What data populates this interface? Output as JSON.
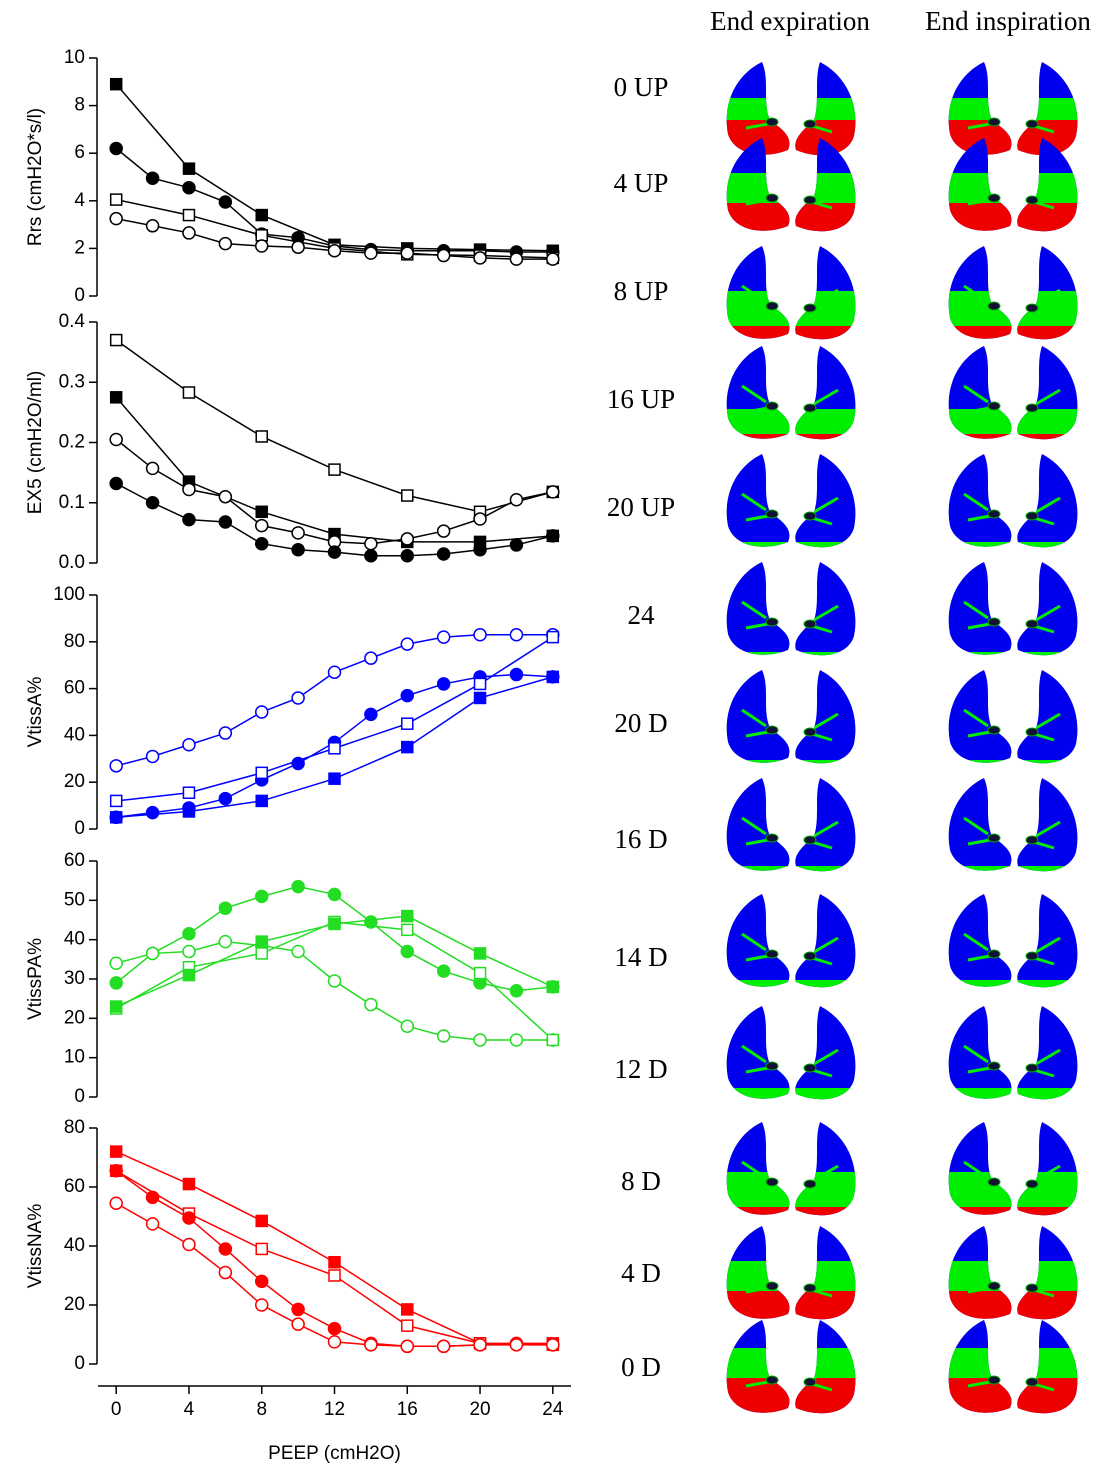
{
  "chart_data": [
    {
      "type": "line",
      "ylabel": "Rrs (cmH2O*s/l)",
      "xlim": [
        -1,
        25
      ],
      "ylim": [
        0,
        10
      ],
      "yticks": [
        0,
        2,
        4,
        6,
        8,
        10
      ],
      "series": [
        {
          "color": "#000000",
          "marker": "square",
          "filled": true,
          "x": [
            0,
            4,
            8,
            12,
            16,
            20,
            24
          ],
          "values": [
            8.9,
            5.35,
            3.4,
            2.15,
            2.0,
            1.95,
            1.9
          ]
        },
        {
          "color": "#000000",
          "marker": "circle",
          "filled": true,
          "x": [
            0,
            2,
            4,
            6,
            8,
            10,
            12,
            14,
            16,
            18,
            20,
            22,
            24
          ],
          "values": [
            6.2,
            4.95,
            4.55,
            3.95,
            2.6,
            2.45,
            2.1,
            1.95,
            1.9,
            1.9,
            1.9,
            1.85,
            1.85
          ]
        },
        {
          "color": "#000000",
          "marker": "square",
          "filled": false,
          "x": [
            0,
            4,
            8,
            12,
            16,
            20,
            24
          ],
          "values": [
            4.05,
            3.4,
            2.55,
            2.0,
            1.75,
            1.7,
            1.6
          ]
        },
        {
          "color": "#000000",
          "marker": "circle",
          "filled": false,
          "x": [
            0,
            2,
            4,
            6,
            8,
            10,
            12,
            14,
            16,
            18,
            20,
            22,
            24
          ],
          "values": [
            3.25,
            2.95,
            2.65,
            2.2,
            2.1,
            2.05,
            1.9,
            1.8,
            1.8,
            1.7,
            1.6,
            1.55,
            1.55
          ]
        }
      ]
    },
    {
      "type": "line",
      "ylabel": "EX5 (cmH2O/ml)",
      "xlim": [
        -1,
        25
      ],
      "ylim": [
        0,
        0.4
      ],
      "yticks": [
        {
          "value": 0,
          "label": "0.0"
        },
        0.1,
        0.2,
        0.3,
        0.4
      ],
      "series": [
        {
          "color": "#000000",
          "marker": "square",
          "filled": false,
          "x": [
            0,
            4,
            8,
            12,
            16,
            20,
            24
          ],
          "values": [
            0.37,
            0.283,
            0.21,
            0.155,
            0.112,
            0.085,
            0.118
          ]
        },
        {
          "color": "#000000",
          "marker": "square",
          "filled": true,
          "x": [
            0,
            4,
            8,
            12,
            16,
            20,
            24
          ],
          "values": [
            0.275,
            0.135,
            0.085,
            0.048,
            0.035,
            0.035,
            0.045
          ]
        },
        {
          "color": "#000000",
          "marker": "circle",
          "filled": false,
          "x": [
            0,
            2,
            4,
            6,
            8,
            10,
            12,
            14,
            16,
            18,
            20,
            22,
            24
          ],
          "values": [
            0.205,
            0.157,
            0.122,
            0.11,
            0.062,
            0.05,
            0.035,
            0.032,
            0.04,
            0.053,
            0.073,
            0.105,
            0.118
          ]
        },
        {
          "color": "#000000",
          "marker": "circle",
          "filled": true,
          "x": [
            0,
            2,
            4,
            6,
            8,
            10,
            12,
            14,
            16,
            18,
            20,
            22,
            24
          ],
          "values": [
            0.132,
            0.1,
            0.072,
            0.068,
            0.032,
            0.022,
            0.018,
            0.012,
            0.012,
            0.015,
            0.022,
            0.03,
            0.045
          ]
        }
      ]
    },
    {
      "type": "line",
      "ylabel": "VtissA%",
      "xlim": [
        -1,
        25
      ],
      "ylim": [
        0,
        100
      ],
      "yticks": [
        0,
        20,
        40,
        60,
        80,
        100
      ],
      "series": [
        {
          "color": "#0000ff",
          "marker": "circle",
          "filled": false,
          "x": [
            0,
            2,
            4,
            6,
            8,
            10,
            12,
            14,
            16,
            18,
            20,
            22,
            24
          ],
          "values": [
            27,
            31,
            36,
            41,
            50,
            56,
            67,
            73,
            79,
            82,
            83,
            83,
            83
          ]
        },
        {
          "color": "#0000ff",
          "marker": "circle",
          "filled": true,
          "x": [
            0,
            2,
            4,
            6,
            8,
            10,
            12,
            14,
            16,
            18,
            20,
            22,
            24
          ],
          "values": [
            5,
            7,
            9,
            13,
            21,
            28,
            37,
            49,
            57,
            62,
            65,
            66,
            65
          ]
        },
        {
          "color": "#0000ff",
          "marker": "square",
          "filled": false,
          "x": [
            0,
            4,
            8,
            12,
            16,
            20,
            24
          ],
          "values": [
            12,
            15.5,
            24,
            34.5,
            45,
            62,
            82
          ]
        },
        {
          "color": "#0000ff",
          "marker": "square",
          "filled": true,
          "x": [
            0,
            4,
            8,
            12,
            16,
            20,
            24
          ],
          "values": [
            5,
            7.5,
            12,
            21.5,
            35,
            56,
            65
          ]
        }
      ]
    },
    {
      "type": "line",
      "ylabel": "VtissPA%",
      "xlim": [
        -1,
        25
      ],
      "ylim": [
        0,
        60
      ],
      "yticks": [
        0,
        10,
        20,
        30,
        40,
        50,
        60
      ],
      "series": [
        {
          "color": "#22dd22",
          "marker": "circle",
          "filled": true,
          "x": [
            0,
            2,
            4,
            6,
            8,
            10,
            12,
            14,
            16,
            18,
            20,
            22,
            24
          ],
          "values": [
            29,
            36.5,
            41.5,
            48,
            51,
            53.5,
            51.5,
            44.5,
            37,
            32,
            29,
            27,
            28
          ]
        },
        {
          "color": "#22dd22",
          "marker": "circle",
          "filled": false,
          "x": [
            0,
            2,
            4,
            6,
            8,
            10,
            12,
            14,
            16,
            18,
            20,
            22,
            24
          ],
          "values": [
            34,
            36.5,
            37,
            39.5,
            38.5,
            37,
            29.5,
            23.5,
            18,
            15.5,
            14.5,
            14.5,
            14.5
          ]
        },
        {
          "color": "#22dd22",
          "marker": "square",
          "filled": false,
          "x": [
            0,
            4,
            8,
            12,
            16,
            20,
            24
          ],
          "values": [
            22.5,
            33,
            36.5,
            44.5,
            42.5,
            31.5,
            14.5
          ]
        },
        {
          "color": "#22dd22",
          "marker": "square",
          "filled": true,
          "x": [
            0,
            4,
            8,
            12,
            16,
            20,
            24
          ],
          "values": [
            23,
            31,
            39.5,
            44,
            46,
            36.5,
            28
          ]
        }
      ]
    },
    {
      "type": "line",
      "ylabel": "VtissNA%",
      "xlabel": "PEEP (cmH2O)",
      "xlim": [
        -1,
        25
      ],
      "xticks": [
        0,
        4,
        8,
        12,
        16,
        20,
        24
      ],
      "ylim": [
        0,
        80
      ],
      "yticks": [
        0,
        20,
        40,
        60,
        80
      ],
      "series": [
        {
          "color": "#ff0000",
          "marker": "square",
          "filled": true,
          "x": [
            0,
            4,
            8,
            12,
            16,
            20,
            24
          ],
          "values": [
            72,
            61,
            48.5,
            34.5,
            18.5,
            7,
            7
          ]
        },
        {
          "color": "#ff0000",
          "marker": "square",
          "filled": false,
          "x": [
            0,
            4,
            8,
            12,
            16,
            20,
            24
          ],
          "values": [
            65.5,
            51,
            39,
            30,
            13,
            7,
            6.5
          ]
        },
        {
          "color": "#ff0000",
          "marker": "circle",
          "filled": true,
          "x": [
            0,
            2,
            4,
            6,
            8,
            10,
            12,
            14,
            16,
            18,
            20,
            22,
            24
          ],
          "values": [
            65.5,
            56.5,
            49.5,
            39,
            28,
            18.5,
            12,
            7,
            6,
            6,
            6.5,
            7,
            6.5
          ]
        },
        {
          "color": "#ff0000",
          "marker": "circle",
          "filled": false,
          "x": [
            0,
            2,
            4,
            6,
            8,
            10,
            12,
            14,
            16,
            18,
            20,
            22,
            24
          ],
          "values": [
            54.5,
            47.5,
            40.5,
            31,
            20,
            13.5,
            7.5,
            6.5,
            6,
            6,
            6.5,
            6.5,
            6.5
          ]
        }
      ]
    }
  ],
  "ct_panel": {
    "columns": [
      "End expiration",
      "End inspiration"
    ],
    "rows": [
      "0 UP",
      "4 UP",
      "8 UP",
      "16 UP",
      "20 UP",
      "24",
      "20 D",
      "16 D",
      "14 D",
      "12 D",
      "8 D",
      "4 D",
      "0 D"
    ]
  }
}
